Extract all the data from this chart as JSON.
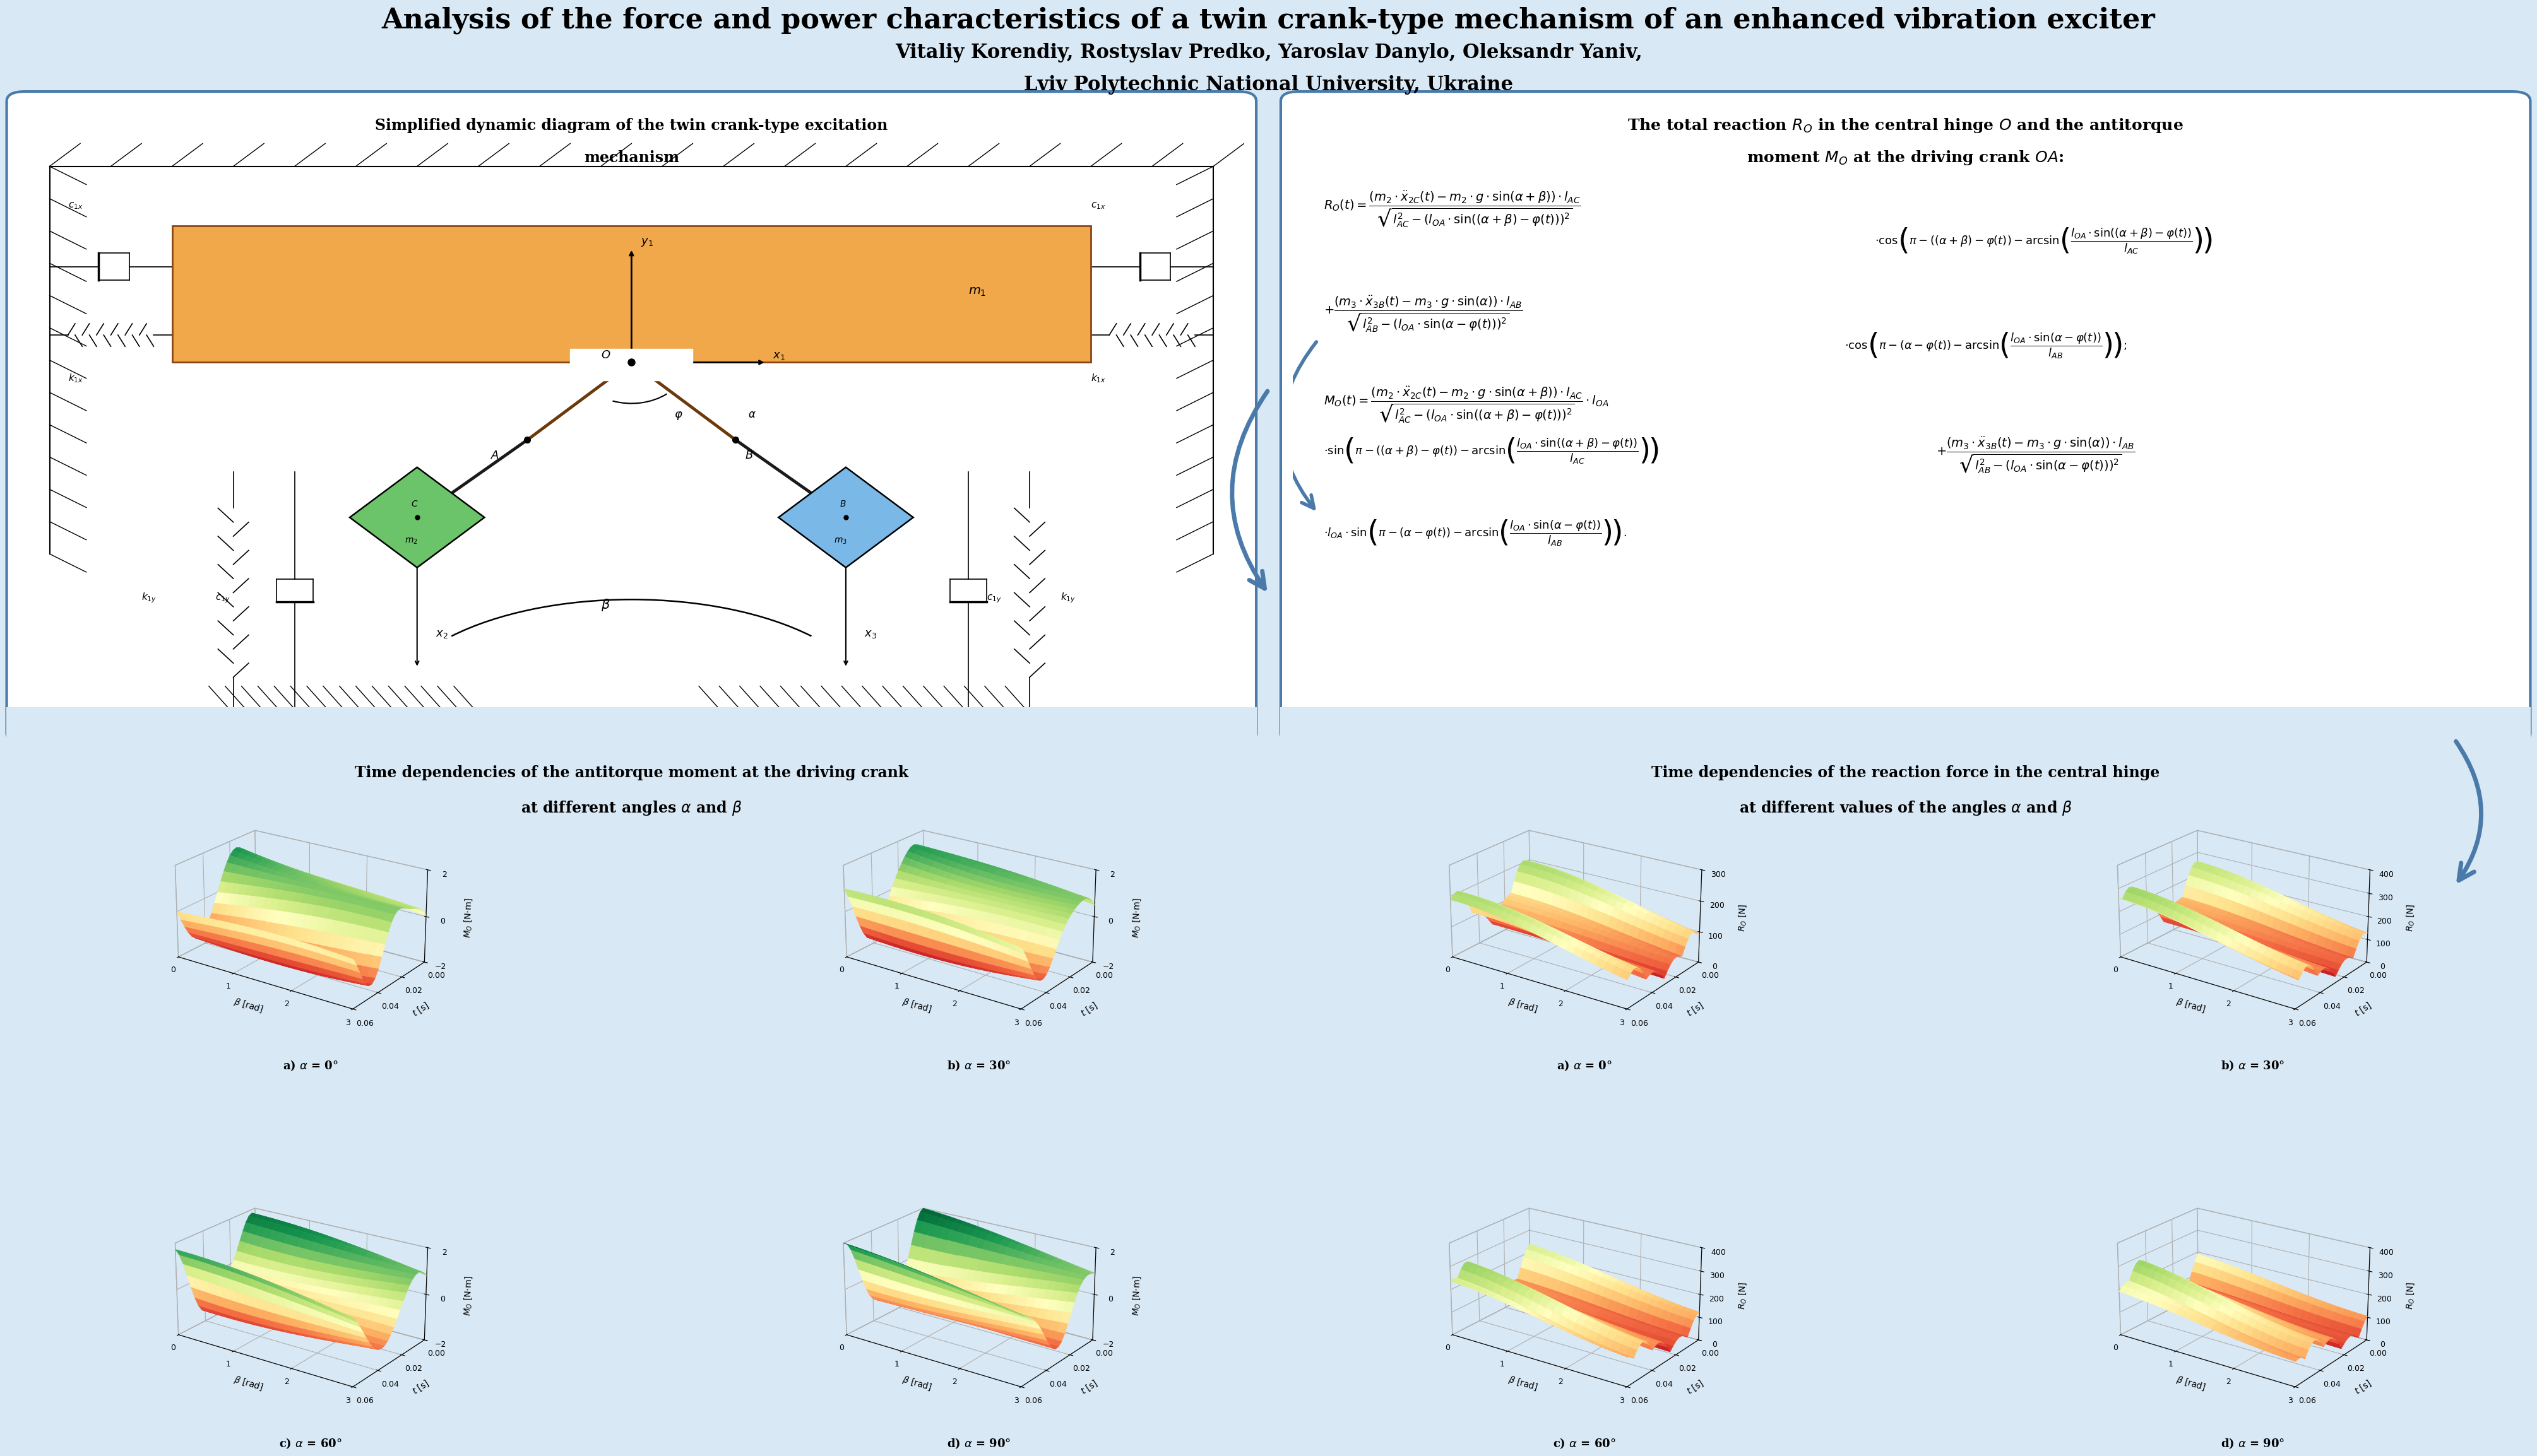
{
  "title": "Analysis of the force and power characteristics of a twin crank-type mechanism of an enhanced vibration exciter",
  "authors": "Vitaliy Korendiy, Rostyslav Predko, Yaroslav Danylo, Oleksandr Yaniv,",
  "affiliation": "Lviv Polytechnic National University, Ukraine",
  "bg_color": "#d8e8f4",
  "box_edge_color": "#4a7aaa",
  "left_box_title_line1": "Simplified dynamic diagram of the twin crank-type excitation",
  "left_box_title_line2": "mechanism",
  "right_box_title_line1": "The total reaction $R_O$ in the central hinge $O$ and the antitorque",
  "right_box_title_line2": "moment $M_O$ at the driving crank $OA$:",
  "bottom_left_title_line1": "Time dependencies of the antitorque moment at the driving crank",
  "bottom_left_title_line2": "at different angles $\\alpha$ and $\\beta$",
  "bottom_right_title_line1": "Time dependencies of the reaction force in the central hinge",
  "bottom_right_title_line2": "at different values of the angles $\\alpha$ and $\\beta$",
  "plot_labels_left": [
    "a) $\\alpha$ = 0°",
    "b) $\\alpha$ = 30°",
    "c) $\\alpha$ = 60°",
    "d) $\\alpha$ = 90°"
  ],
  "plot_labels_right": [
    "a) $\\alpha$ = 0°",
    "b) $\\alpha$ = 30°",
    "c) $\\alpha$ = 60°",
    "d) $\\alpha$ = 90°"
  ],
  "body_color": "#f0a84a",
  "m2_color": "#6cc46a",
  "m3_color": "#7ab8e8",
  "alphas_deg": [
    0,
    30,
    60,
    90
  ],
  "Mo_zlim": [
    -2,
    2
  ],
  "Ro_zlim_a0": [
    0,
    300
  ],
  "Ro_zlim_other": [
    0,
    400
  ]
}
